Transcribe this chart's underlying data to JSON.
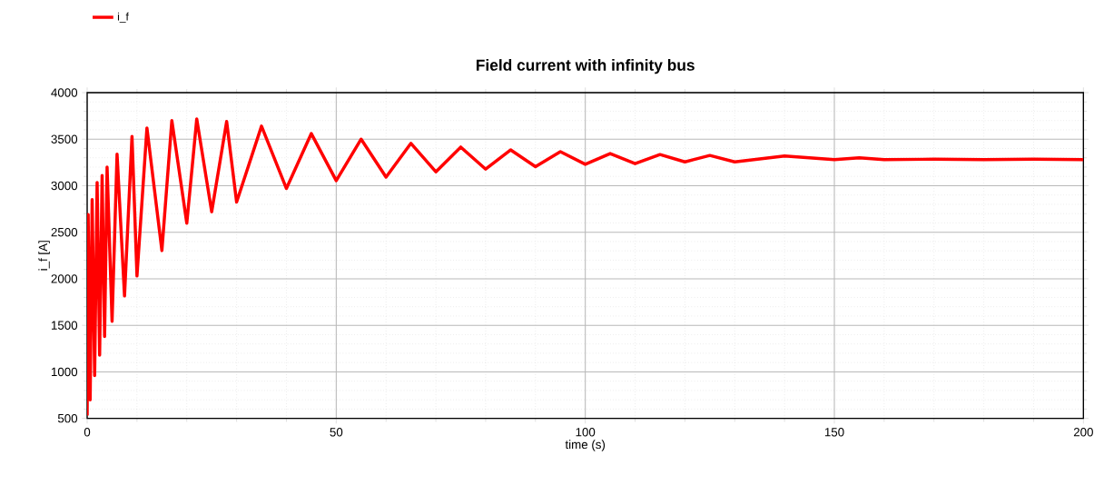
{
  "chart_data": {
    "type": "line",
    "title": "Field current with infinity bus",
    "xlabel": "time (s)",
    "ylabel": "i_f [A]",
    "xlim": [
      0,
      200
    ],
    "ylim": [
      500,
      4000
    ],
    "xticks": [
      0,
      50,
      100,
      150,
      200
    ],
    "yticks": [
      500,
      1000,
      1500,
      2000,
      2500,
      3000,
      3500,
      4000
    ],
    "grid": true,
    "legend": "top left",
    "marker": "none",
    "line_style": "solid",
    "series": [
      {
        "name": "i_f",
        "color": "#ff0000",
        "x": [
          0,
          0.2,
          0.6,
          1,
          1.5,
          2,
          2.5,
          3,
          3.5,
          4,
          5,
          6,
          7.5,
          9,
          10,
          12,
          15,
          17,
          20,
          22,
          25,
          28,
          30,
          35,
          40,
          45,
          50,
          55,
          60,
          65,
          70,
          75,
          80,
          85,
          90,
          95,
          100,
          105,
          110,
          115,
          120,
          125,
          130,
          140,
          150,
          155,
          160,
          170,
          180,
          190,
          200
        ],
        "values": [
          530,
          2690,
          700,
          2850,
          960,
          3035,
          1180,
          3110,
          1380,
          3200,
          1543,
          3340,
          1816,
          3530,
          2030,
          3620,
          2303,
          3700,
          2596,
          3717,
          2720,
          3690,
          2824,
          3640,
          2970,
          3560,
          3054,
          3500,
          3093,
          3455,
          3149,
          3415,
          3178,
          3385,
          3205,
          3365,
          3230,
          3345,
          3237,
          3335,
          3256,
          3325,
          3256,
          3320,
          3280,
          3300,
          3280,
          3285,
          3280,
          3285,
          3280
        ]
      }
    ]
  }
}
